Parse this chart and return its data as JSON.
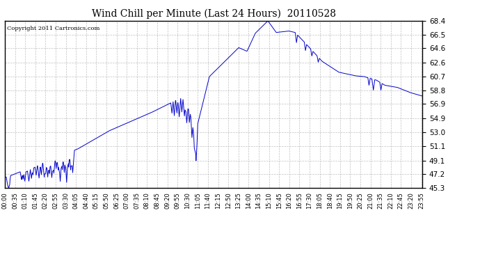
{
  "title": "Wind Chill per Minute (Last 24 Hours)  20110528",
  "copyright": "Copyright 2011 Cartronics.com",
  "line_color": "#0000cc",
  "background_color": "#ffffff",
  "grid_color": "#b0b0b0",
  "yticks": [
    45.3,
    47.2,
    49.1,
    51.1,
    53.0,
    54.9,
    56.9,
    58.8,
    60.7,
    62.6,
    64.6,
    66.5,
    68.4
  ],
  "ymin": 45.3,
  "ymax": 68.4,
  "total_minutes": 1440,
  "xtick_labels": [
    "00:00",
    "00:35",
    "01:10",
    "01:45",
    "02:20",
    "02:55",
    "03:30",
    "04:05",
    "04:40",
    "05:15",
    "05:50",
    "06:25",
    "07:00",
    "07:35",
    "08:10",
    "08:45",
    "09:20",
    "09:55",
    "10:30",
    "11:05",
    "11:40",
    "12:15",
    "12:50",
    "13:25",
    "14:00",
    "14:35",
    "15:10",
    "15:45",
    "16:20",
    "16:55",
    "17:30",
    "18:05",
    "18:40",
    "19:15",
    "19:50",
    "20:25",
    "21:00",
    "21:35",
    "22:10",
    "22:45",
    "23:20",
    "23:55"
  ]
}
